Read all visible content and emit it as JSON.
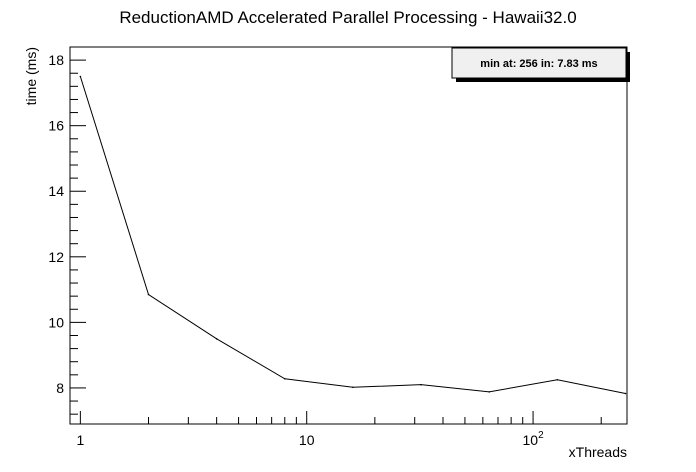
{
  "chart_data": {
    "type": "line",
    "title": "ReductionAMD Accelerated Parallel Processing - Hawaii32.0",
    "xlabel": "xThreads",
    "ylabel": "time (ms)",
    "x_scale": "log",
    "xlim": [
      0.9,
      260
    ],
    "ylim": [
      6.9,
      18.4
    ],
    "x_ticks": [
      {
        "value": 1,
        "label": "1"
      },
      {
        "value": 10,
        "label": "10"
      },
      {
        "value": 100,
        "label": "10",
        "exponent": "2"
      }
    ],
    "y_ticks": [
      {
        "value": 8,
        "label": "8"
      },
      {
        "value": 10,
        "label": "10"
      },
      {
        "value": 12,
        "label": "12"
      },
      {
        "value": 14,
        "label": "14"
      },
      {
        "value": 16,
        "label": "16"
      },
      {
        "value": 18,
        "label": "18"
      }
    ],
    "grid": false,
    "legend": {
      "text": "min at: 256 in: 7.83 ms",
      "placement": "top-right"
    },
    "series": [
      {
        "x": [
          1,
          2,
          4,
          8,
          16,
          32,
          64,
          128,
          256
        ],
        "y": [
          17.5,
          10.85,
          9.5,
          8.28,
          8.02,
          8.1,
          7.88,
          8.25,
          7.83
        ]
      }
    ]
  }
}
